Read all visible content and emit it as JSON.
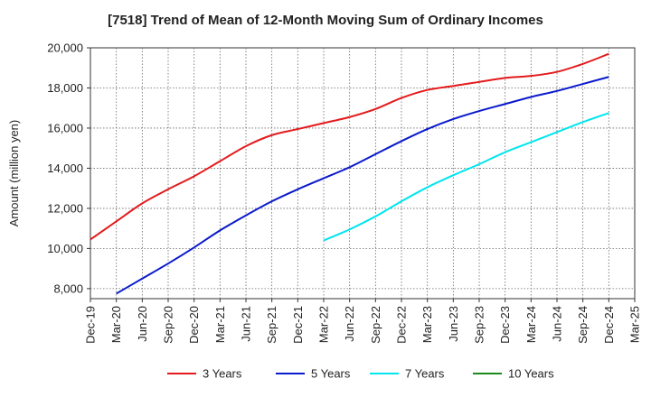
{
  "chart_data": {
    "type": "line",
    "title": "[7518]  Trend of Mean of 12-Month Moving Sum of Ordinary Incomes",
    "ylabel": "Amount (million yen)",
    "xlabel": "",
    "ylim": [
      7500,
      20000
    ],
    "y_ticks": [
      8000,
      10000,
      12000,
      14000,
      16000,
      18000,
      20000
    ],
    "y_tick_labels": [
      "8,000",
      "10,000",
      "12,000",
      "14,000",
      "16,000",
      "18,000",
      "20,000"
    ],
    "x_ticks": [
      "2019-12",
      "2020-03",
      "2020-06",
      "2020-09",
      "2020-12",
      "2021-03",
      "2021-06",
      "2021-09",
      "2021-12",
      "2022-03",
      "2022-06",
      "2022-09",
      "2022-12",
      "2023-03",
      "2023-06",
      "2023-09",
      "2023-12",
      "2024-03",
      "2024-06",
      "2024-09",
      "2024-12",
      "2025-03"
    ],
    "x_tick_labels": [
      "Dec-19",
      "Mar-20",
      "Jun-20",
      "Sep-20",
      "Dec-20",
      "Mar-21",
      "Jun-21",
      "Sep-21",
      "Dec-21",
      "Mar-22",
      "Jun-22",
      "Sep-22",
      "Dec-22",
      "Mar-23",
      "Jun-23",
      "Sep-23",
      "Dec-23",
      "Mar-24",
      "Jun-24",
      "Sep-24",
      "Dec-24",
      "Mar-25"
    ],
    "grid": true,
    "legend_position": "bottom",
    "series": [
      {
        "name": "3 Years",
        "color": "#e41a1c",
        "x": [
          "2019-12",
          "2020-03",
          "2020-06",
          "2020-09",
          "2020-12",
          "2021-03",
          "2021-06",
          "2021-09",
          "2021-12",
          "2022-03",
          "2022-06",
          "2022-09",
          "2022-12",
          "2023-03",
          "2023-06",
          "2023-09",
          "2023-12",
          "2024-03",
          "2024-06",
          "2024-09",
          "2024-12"
        ],
        "values": [
          10450,
          11350,
          12250,
          12950,
          13600,
          14350,
          15100,
          15650,
          15950,
          16250,
          16550,
          16950,
          17500,
          17900,
          18100,
          18300,
          18500,
          18600,
          18800,
          19200,
          19700
        ]
      },
      {
        "name": "5 Years",
        "color": "#0a1acc",
        "x": [
          "2020-03",
          "2020-06",
          "2020-09",
          "2020-12",
          "2021-03",
          "2021-06",
          "2021-09",
          "2021-12",
          "2022-03",
          "2022-06",
          "2022-09",
          "2022-12",
          "2023-03",
          "2023-06",
          "2023-09",
          "2023-12",
          "2024-03",
          "2024-06",
          "2024-09",
          "2024-12"
        ],
        "values": [
          7750,
          8500,
          9250,
          10050,
          10900,
          11650,
          12350,
          12950,
          13500,
          14050,
          14700,
          15350,
          15950,
          16450,
          16850,
          17200,
          17550,
          17850,
          18200,
          18550
        ]
      },
      {
        "name": "7 Years",
        "color": "#00e5ee",
        "x": [
          "2022-03",
          "2022-06",
          "2022-09",
          "2022-12",
          "2023-03",
          "2023-06",
          "2023-09",
          "2023-12",
          "2024-03",
          "2024-06",
          "2024-09",
          "2024-12"
        ],
        "values": [
          10400,
          10950,
          11600,
          12350,
          13050,
          13650,
          14200,
          14800,
          15300,
          15800,
          16300,
          16750
        ]
      },
      {
        "name": "10 Years",
        "color": "#1a8a1a",
        "x": [],
        "values": []
      }
    ]
  }
}
